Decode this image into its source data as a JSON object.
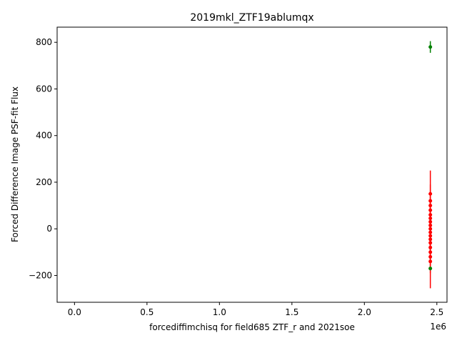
{
  "chart_data": {
    "type": "scatter",
    "title": "2019mkl_ZTF19ablumqx",
    "xlabel": "forcediffimchisq for field685 ZTF_r and 2021soe",
    "ylabel": "Forced Difference Image PSF-fit Flux",
    "x_offset_label": "1e6",
    "xlim": [
      -0.12,
      2.57
    ],
    "ylim": [
      -315,
      865
    ],
    "x_ticks": [
      0.0,
      0.5,
      1.0,
      1.5,
      2.0,
      2.5
    ],
    "x_tick_labels": [
      "0.0",
      "0.5",
      "1.0",
      "1.5",
      "2.0",
      "2.5"
    ],
    "y_ticks": [
      -200,
      0,
      200,
      400,
      600,
      800
    ],
    "y_tick_labels": [
      "−200",
      "0",
      "200",
      "400",
      "600",
      "800"
    ],
    "grid": false,
    "series": [
      {
        "color": "#ff0000",
        "points": [
          {
            "x": 2.455,
            "y": 150,
            "err": 100
          },
          {
            "x": 2.455,
            "y": 120,
            "err": 70
          },
          {
            "x": 2.455,
            "y": 100,
            "err": 60
          },
          {
            "x": 2.455,
            "y": 80,
            "err": 60
          },
          {
            "x": 2.455,
            "y": 60,
            "err": 55
          },
          {
            "x": 2.455,
            "y": 45,
            "err": 55
          },
          {
            "x": 2.455,
            "y": 30,
            "err": 50
          },
          {
            "x": 2.455,
            "y": 15,
            "err": 50
          },
          {
            "x": 2.455,
            "y": 0,
            "err": 50
          },
          {
            "x": 2.455,
            "y": -15,
            "err": 50
          },
          {
            "x": 2.455,
            "y": -30,
            "err": 55
          },
          {
            "x": 2.455,
            "y": -45,
            "err": 55
          },
          {
            "x": 2.455,
            "y": -60,
            "err": 60
          },
          {
            "x": 2.455,
            "y": -80,
            "err": 60
          },
          {
            "x": 2.455,
            "y": -100,
            "err": 70
          },
          {
            "x": 2.455,
            "y": -120,
            "err": 70
          },
          {
            "x": 2.455,
            "y": -140,
            "err": 115
          }
        ]
      },
      {
        "color": "#008000",
        "points": [
          {
            "x": 2.455,
            "y": 780,
            "err": 25
          },
          {
            "x": 2.455,
            "y": -170,
            "err": 8
          }
        ]
      }
    ]
  }
}
